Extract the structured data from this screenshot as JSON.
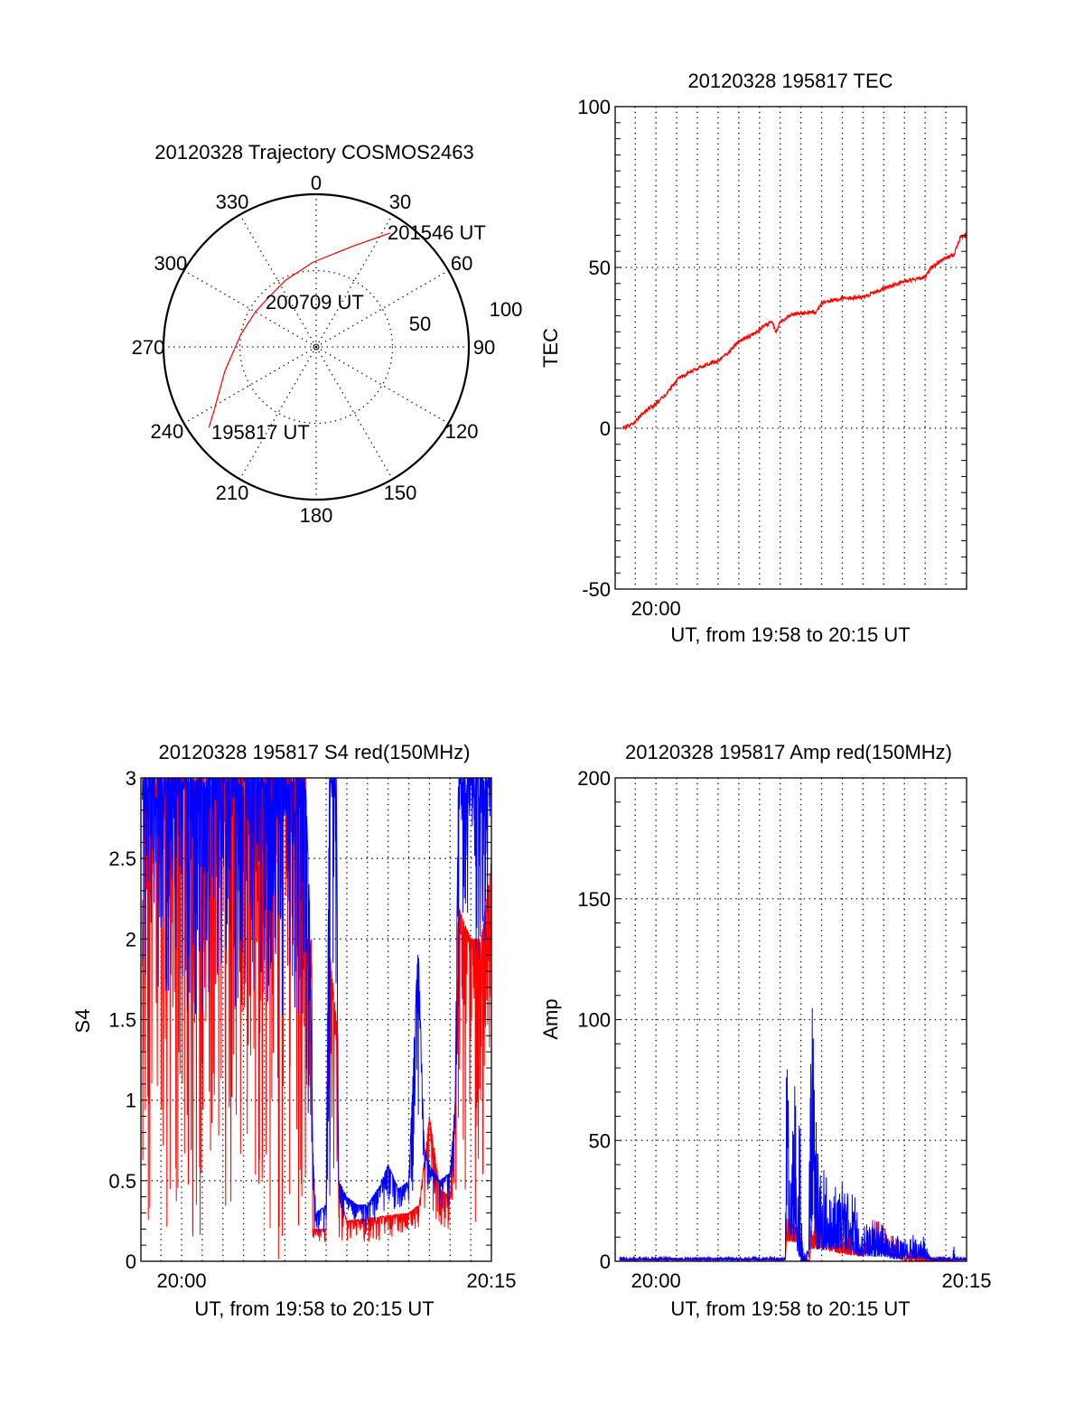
{
  "colors": {
    "red": "#ff0000",
    "blue": "#0000ff",
    "axis": "#000000"
  },
  "chart_data": [
    {
      "id": "trajectory",
      "type": "polar",
      "title": "20120328 Trajectory COSMOS2463",
      "angle_labels": [
        "0",
        "30",
        "60",
        "90",
        "120",
        "150",
        "180",
        "210",
        "240",
        "270",
        "300",
        "330"
      ],
      "radial_labels": [
        "50",
        "100"
      ],
      "rlim": [
        0,
        100
      ],
      "grid": true,
      "series": [
        {
          "name": "trajectory",
          "color": "red",
          "points_az_r": [
            [
              233,
              88
            ],
            [
              238.6,
              78
            ],
            [
              255,
              62
            ],
            [
              279.6,
              50
            ],
            [
              300,
              46
            ],
            [
              315.5,
              45
            ],
            [
              335,
              48
            ],
            [
              358,
              55.6
            ],
            [
              19.8,
              70
            ],
            [
              33,
              89
            ]
          ]
        }
      ],
      "annotations": [
        "195817 UT",
        "200709 UT",
        "201546 UT"
      ]
    },
    {
      "id": "tec",
      "type": "line",
      "title": "20120328 195817 TEC",
      "xlabel": "UT, from 19:58 to 20:15 UT",
      "ylabel": "TEC",
      "x_units": "minutes after 20:00 UT",
      "xlim": [
        -1.97,
        15
      ],
      "ylim": [
        -50,
        100
      ],
      "yticks": [
        "-50",
        "0",
        "50",
        "100"
      ],
      "xticks": [
        {
          "t": 0,
          "label": "20:00"
        }
      ],
      "grid": true,
      "series": [
        {
          "name": "TEC",
          "color": "red",
          "points": [
            [
              -1.6,
              0
            ],
            [
              -1.2,
              1
            ],
            [
              -0.8,
              3.5
            ],
            [
              -0.4,
              6
            ],
            [
              0,
              7.5
            ],
            [
              0.4,
              10
            ],
            [
              0.6,
              11.5
            ],
            [
              1,
              15
            ],
            [
              1.5,
              17
            ],
            [
              2,
              18.5
            ],
            [
              2.5,
              20
            ],
            [
              3,
              21
            ],
            [
              3.5,
              23.5
            ],
            [
              4,
              27
            ],
            [
              4.5,
              28.5
            ],
            [
              5,
              30.7
            ],
            [
              5.6,
              33.3
            ],
            [
              5.8,
              30
            ],
            [
              6,
              33
            ],
            [
              6.6,
              35.5
            ],
            [
              7.7,
              36
            ],
            [
              8,
              38.8
            ],
            [
              8.9,
              40.3
            ],
            [
              10,
              40.7
            ],
            [
              11,
              43.4
            ],
            [
              12,
              45.7
            ],
            [
              13,
              47
            ],
            [
              13.3,
              50
            ],
            [
              14,
              53
            ],
            [
              14.4,
              54
            ],
            [
              14.7,
              59.6
            ],
            [
              15,
              60
            ]
          ]
        }
      ]
    },
    {
      "id": "s4",
      "type": "line",
      "title": "20120328 195817 S4 red(150MHz)",
      "xlabel": "UT, from 19:58 to 20:15 UT",
      "ylabel": "S4",
      "x_units": "minutes after 20:00 UT",
      "xlim": [
        -1.97,
        15
      ],
      "ylim": [
        0,
        3
      ],
      "yticks": [
        "0",
        "0.5",
        "1",
        "1.5",
        "2",
        "2.5",
        "3"
      ],
      "xticks": [
        {
          "t": 0,
          "label": "20:00"
        },
        {
          "t": 15,
          "label": "20:15"
        }
      ],
      "grid": true,
      "envelope_format": "[t, min, max]",
      "series": [
        {
          "name": "red",
          "color": "red",
          "spike_direction": "down",
          "envelope": [
            [
              -1.9,
              0,
              3
            ],
            [
              6,
              0,
              3
            ],
            [
              6.05,
              0.6,
              2
            ],
            [
              6.3,
              0.6,
              2
            ],
            [
              6.35,
              0.1,
              0.2
            ],
            [
              7.0,
              0.1,
              0.2
            ],
            [
              7.1,
              0.5,
              2.0
            ],
            [
              7.5,
              0.5,
              1.5
            ],
            [
              7.6,
              0.15,
              0.45
            ],
            [
              8,
              0.1,
              0.25
            ],
            [
              11,
              0.15,
              0.3
            ],
            [
              11.5,
              0.2,
              0.35
            ],
            [
              12,
              0.3,
              0.9
            ],
            [
              12.5,
              0.2,
              0.45
            ],
            [
              13,
              0.2,
              0.4
            ],
            [
              13.25,
              0.4,
              1.0
            ],
            [
              13.4,
              0.5,
              2.2
            ],
            [
              14,
              0,
              2
            ],
            [
              14.5,
              0,
              2
            ],
            [
              15,
              1.5,
              2.5
            ]
          ]
        },
        {
          "name": "blue",
          "color": "blue",
          "spike_direction": "down",
          "envelope": [
            [
              -1.9,
              1.9,
              3
            ],
            [
              -1.5,
              1.5,
              3
            ],
            [
              -1,
              1.6,
              3
            ],
            [
              0,
              1.7,
              3
            ],
            [
              0.5,
              1.4,
              3
            ],
            [
              1,
              1.4,
              3
            ],
            [
              1.5,
              1.6,
              3
            ],
            [
              3.5,
              1.5,
              3
            ],
            [
              5.5,
              1.5,
              3
            ],
            [
              6,
              1.0,
              3
            ],
            [
              6.2,
              0.7,
              2.2
            ],
            [
              6.35,
              0.2,
              0.7
            ],
            [
              6.5,
              0.15,
              0.3
            ],
            [
              7,
              0.15,
              0.35
            ],
            [
              7.15,
              0.3,
              3
            ],
            [
              7.5,
              1.5,
              3
            ],
            [
              7.6,
              0.25,
              0.5
            ],
            [
              8,
              0.25,
              0.4
            ],
            [
              8.5,
              0.22,
              0.35
            ],
            [
              9,
              0.2,
              0.35
            ],
            [
              9.5,
              0.25,
              0.45
            ],
            [
              10,
              0.3,
              0.6
            ],
            [
              10.5,
              0.3,
              0.45
            ],
            [
              11,
              0.35,
              0.5
            ],
            [
              11.45,
              0.5,
              2.0
            ],
            [
              11.75,
              0.5,
              0.7
            ],
            [
              12,
              0.4,
              0.6
            ],
            [
              12.5,
              0.3,
              0.5
            ],
            [
              13,
              0.35,
              0.55
            ],
            [
              13.25,
              0.5,
              1.0
            ],
            [
              13.4,
              1.0,
              3
            ],
            [
              13.5,
              1.8,
              3
            ],
            [
              14,
              1.7,
              3
            ],
            [
              14.5,
              1.9,
              3
            ],
            [
              15,
              2,
              3
            ]
          ]
        }
      ]
    },
    {
      "id": "amp",
      "type": "line",
      "title": "20120328 195817 Amp red(150MHz)",
      "xlabel": "UT, from 19:58 to 20:15 UT",
      "ylabel": "Amp",
      "x_units": "minutes after 20:00 UT",
      "xlim": [
        -1.97,
        15
      ],
      "ylim": [
        0,
        200
      ],
      "yticks": [
        "0",
        "50",
        "100",
        "150",
        "200"
      ],
      "xticks": [
        {
          "t": 0,
          "label": "20:00"
        },
        {
          "t": 15,
          "label": "20:15"
        }
      ],
      "grid": true,
      "envelope_format": "[t, min, max]",
      "series": [
        {
          "name": "red",
          "color": "red",
          "spike_direction": "up",
          "envelope": [
            [
              -1.75,
              0.5,
              1.5
            ],
            [
              6.25,
              0.5,
              1.5
            ],
            [
              6.3,
              8,
              18
            ],
            [
              7,
              8,
              18
            ],
            [
              7.15,
              0,
              1
            ],
            [
              7.4,
              0,
              1
            ],
            [
              7.5,
              5,
              20
            ],
            [
              8,
              5,
              15
            ],
            [
              9,
              3,
              12
            ],
            [
              10,
              2,
              8
            ],
            [
              10.5,
              5,
              18
            ],
            [
              11,
              3,
              15
            ],
            [
              11.5,
              2,
              10
            ],
            [
              12,
              0,
              5
            ],
            [
              13.3,
              0,
              2
            ],
            [
              15,
              0.5,
              1.5
            ]
          ]
        },
        {
          "name": "blue",
          "color": "blue",
          "spike_direction": "up",
          "envelope": [
            [
              -1.75,
              0.5,
              2
            ],
            [
              6.25,
              0.5,
              2
            ],
            [
              6.3,
              20,
              80
            ],
            [
              6.5,
              10,
              80
            ],
            [
              6.8,
              5,
              75
            ],
            [
              7,
              0,
              60
            ],
            [
              7.1,
              0,
              3
            ],
            [
              7.35,
              0,
              5
            ],
            [
              7.5,
              10,
              100
            ],
            [
              7.55,
              20,
              105
            ],
            [
              7.75,
              5,
              55
            ],
            [
              8,
              5,
              40
            ],
            [
              8.5,
              5,
              30
            ],
            [
              9,
              5,
              35
            ],
            [
              9.5,
              3,
              30
            ],
            [
              10,
              2,
              15
            ],
            [
              10.5,
              2,
              18
            ],
            [
              11,
              2,
              15
            ],
            [
              11.5,
              1,
              12
            ],
            [
              12,
              1,
              10
            ],
            [
              12.5,
              1,
              12
            ],
            [
              13,
              1,
              10
            ],
            [
              13.3,
              0.5,
              2
            ],
            [
              14.35,
              0.5,
              2
            ],
            [
              14.4,
              0.5,
              13
            ],
            [
              14.45,
              0.5,
              2
            ],
            [
              15,
              0.5,
              2
            ]
          ]
        }
      ]
    }
  ]
}
